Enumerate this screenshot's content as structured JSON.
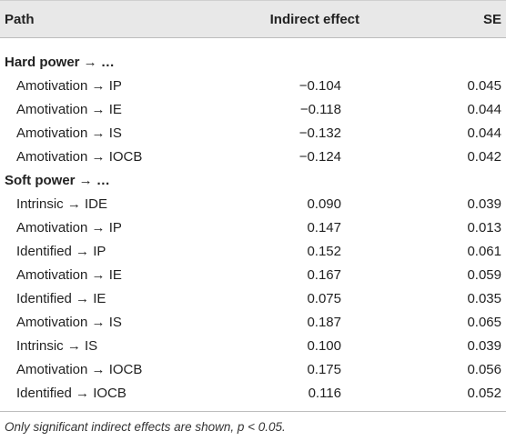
{
  "header": {
    "path": "Path",
    "indirect": "Indirect effect",
    "se": "SE"
  },
  "groups": [
    {
      "label": "Hard power → …",
      "rows": [
        {
          "path": "Amotivation → IP",
          "indirect": "−0.104",
          "se": "0.045"
        },
        {
          "path": "Amotivation → IE",
          "indirect": "−0.118",
          "se": "0.044"
        },
        {
          "path": "Amotivation → IS",
          "indirect": "−0.132",
          "se": "0.044"
        },
        {
          "path": "Amotivation → IOCB",
          "indirect": "−0.124",
          "se": "0.042"
        }
      ]
    },
    {
      "label": "Soft power → …",
      "rows": [
        {
          "path": "Intrinsic → IDE",
          "indirect": "0.090",
          "se": "0.039"
        },
        {
          "path": "Amotivation → IP",
          "indirect": "0.147",
          "se": "0.013"
        },
        {
          "path": "Identified → IP",
          "indirect": "0.152",
          "se": "0.061"
        },
        {
          "path": "Amotivation → IE",
          "indirect": "0.167",
          "se": "0.059"
        },
        {
          "path": "Identified → IE",
          "indirect": "0.075",
          "se": "0.035"
        },
        {
          "path": "Amotivation → IS",
          "indirect": "0.187",
          "se": "0.065"
        },
        {
          "path": "Intrinsic → IS",
          "indirect": "0.100",
          "se": "0.039"
        },
        {
          "path": "Amotivation → IOCB",
          "indirect": "0.175",
          "se": "0.056"
        },
        {
          "path": "Identified → IOCB",
          "indirect": "0.116",
          "se": "0.052"
        }
      ]
    }
  ],
  "footnote": "Only significant indirect effects are shown, p < 0.05."
}
